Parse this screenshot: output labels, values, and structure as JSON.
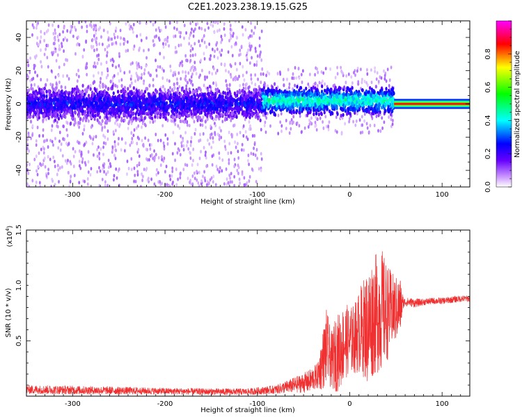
{
  "title": "C2E1.2023.238.19.15.G25",
  "chart_data": [
    {
      "type": "heatmap",
      "xlabel": "Height of straight line (km)",
      "ylabel": "Frequency (Hz)",
      "xlim": [
        -350,
        130
      ],
      "ylim": [
        -50,
        50
      ],
      "xticks": [
        -300,
        -200,
        -100,
        0,
        100
      ],
      "yticks": [
        -40,
        -20,
        0,
        20,
        40
      ],
      "grid": false,
      "colorbar": {
        "label": "Normalized spectral amplitude",
        "range": [
          0.0,
          1.0
        ],
        "ticks": [
          "0.0",
          "0.2",
          "0.4",
          "0.6",
          "0.8"
        ],
        "colors": [
          "#ffffff",
          "#cc99ff",
          "#6600ff",
          "#0000ff",
          "#00ffff",
          "#00ff00",
          "#ffff00",
          "#ff0000",
          "#ff00ff"
        ]
      },
      "regions": [
        {
          "x": [
            -350,
            -95
          ],
          "freq_center": 0,
          "core_halfwidth": 10,
          "scatter_halfwidth": 50,
          "amplitude": 0.25
        },
        {
          "x": [
            -95,
            48
          ],
          "freq_center": 2,
          "core_halfwidth": 8,
          "scatter_halfwidth": 20,
          "amplitude": 0.45
        },
        {
          "x": [
            48,
            130
          ],
          "freq_center": 0,
          "core_halfwidth": 2,
          "scatter_halfwidth": 3,
          "amplitude": 0.85
        }
      ]
    },
    {
      "type": "line",
      "xlabel": "Height of straight line (km)",
      "ylabel": "SNR (10 * v/v)",
      "yscale_label": "(x10",
      "yscale_exponent": "4",
      "yscale_close": ")",
      "xlim": [
        -350,
        130
      ],
      "ylim": [
        0,
        1.5
      ],
      "xticks": [
        -300,
        -200,
        -100,
        0,
        100
      ],
      "yticks": [
        "0.5",
        "1.0",
        "1.5"
      ],
      "ytick_values": [
        0.5,
        1.0,
        1.5
      ],
      "grid": false,
      "series": [
        {
          "color": "#f03030",
          "x": [
            -350,
            -300,
            -250,
            -200,
            -150,
            -110,
            -80,
            -60,
            -45,
            -35,
            -30,
            -25,
            -20,
            -15,
            -10,
            -5,
            0,
            5,
            10,
            15,
            20,
            25,
            30,
            35,
            40,
            45,
            50,
            55,
            58,
            60,
            65,
            70,
            80,
            90,
            100,
            110,
            120,
            130
          ],
          "mean": [
            0.06,
            0.055,
            0.05,
            0.045,
            0.04,
            0.04,
            0.06,
            0.1,
            0.13,
            0.18,
            0.3,
            0.45,
            0.32,
            0.38,
            0.42,
            0.5,
            0.5,
            0.52,
            0.58,
            0.62,
            0.62,
            0.72,
            0.75,
            0.78,
            0.75,
            0.78,
            0.78,
            0.82,
            0.84,
            0.85,
            0.85,
            0.84,
            0.85,
            0.86,
            0.86,
            0.87,
            0.88,
            0.88
          ],
          "amplitude": [
            0.04,
            0.04,
            0.035,
            0.03,
            0.03,
            0.03,
            0.04,
            0.07,
            0.1,
            0.12,
            0.25,
            0.35,
            0.25,
            0.35,
            0.35,
            0.35,
            0.3,
            0.32,
            0.38,
            0.45,
            0.55,
            0.55,
            0.55,
            0.55,
            0.45,
            0.35,
            0.3,
            0.25,
            0.05,
            0.04,
            0.04,
            0.04,
            0.03,
            0.03,
            0.03,
            0.03,
            0.03,
            0.03
          ]
        }
      ]
    }
  ]
}
